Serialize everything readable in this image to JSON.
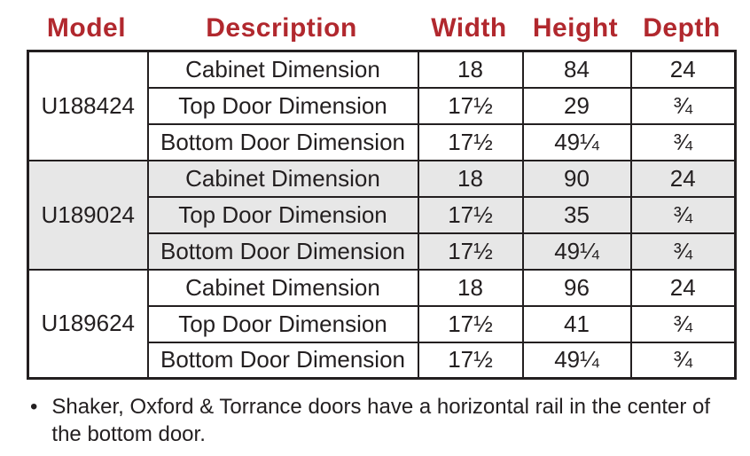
{
  "table": {
    "headers": [
      "Model",
      "Description",
      "Width",
      "Height",
      "Depth"
    ],
    "groups": [
      {
        "model": "U188424",
        "shaded": false,
        "rows": [
          {
            "description": "Cabinet Dimension",
            "width": "18",
            "height": "84",
            "depth": "24"
          },
          {
            "description": "Top Door Dimension",
            "width": "17½",
            "height": "29",
            "depth": "¾"
          },
          {
            "description": "Bottom Door Dimension",
            "width": "17½",
            "height": "49¼",
            "depth": "¾"
          }
        ]
      },
      {
        "model": "U189024",
        "shaded": true,
        "rows": [
          {
            "description": "Cabinet Dimension",
            "width": "18",
            "height": "90",
            "depth": "24"
          },
          {
            "description": "Top Door Dimension",
            "width": "17½",
            "height": "35",
            "depth": "¾"
          },
          {
            "description": "Bottom Door Dimension",
            "width": "17½",
            "height": "49¼",
            "depth": "¾"
          }
        ]
      },
      {
        "model": "U189624",
        "shaded": false,
        "rows": [
          {
            "description": "Cabinet Dimension",
            "width": "18",
            "height": "96",
            "depth": "24"
          },
          {
            "description": "Top Door Dimension",
            "width": "17½",
            "height": "41",
            "depth": "¾"
          },
          {
            "description": "Bottom Door Dimension",
            "width": "17½",
            "height": "49¼",
            "depth": "¾"
          }
        ]
      }
    ]
  },
  "note": {
    "bullet": "•",
    "text": "Shaker, Oxford & Torrance doors have a horizontal rail in the center of the bottom door."
  },
  "colors": {
    "header_red": "#B1282E",
    "row_shade": "#E7E7E7",
    "border": "#231F20",
    "text": "#231F20"
  }
}
